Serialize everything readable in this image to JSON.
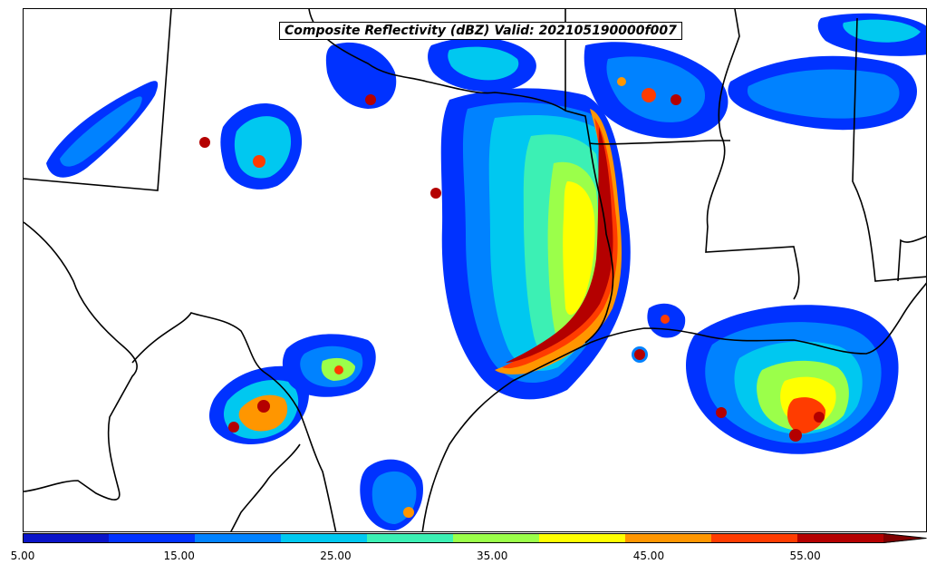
{
  "map": {
    "title": "Composite Reflectivity (dBZ) Valid: 202105190000f007",
    "variable": "composite-reflectivity",
    "boundary_color": "#000000",
    "background_color": "#ffffff"
  },
  "colorbar": {
    "min": 5,
    "max": 60,
    "step": 5,
    "extend": "max",
    "labeled_ticks": [
      "5.00",
      "15.00",
      "25.00",
      "35.00",
      "45.00",
      "55.00"
    ],
    "labeled_values": [
      5,
      15,
      25,
      35,
      45,
      55
    ],
    "colors": [
      "#0a14c8",
      "#0032ff",
      "#0082ff",
      "#00c8f0",
      "#3cf0b4",
      "#9bff4a",
      "#ffff00",
      "#ff9600",
      "#ff3c00",
      "#b40000"
    ],
    "extend_color": "#800000"
  }
}
